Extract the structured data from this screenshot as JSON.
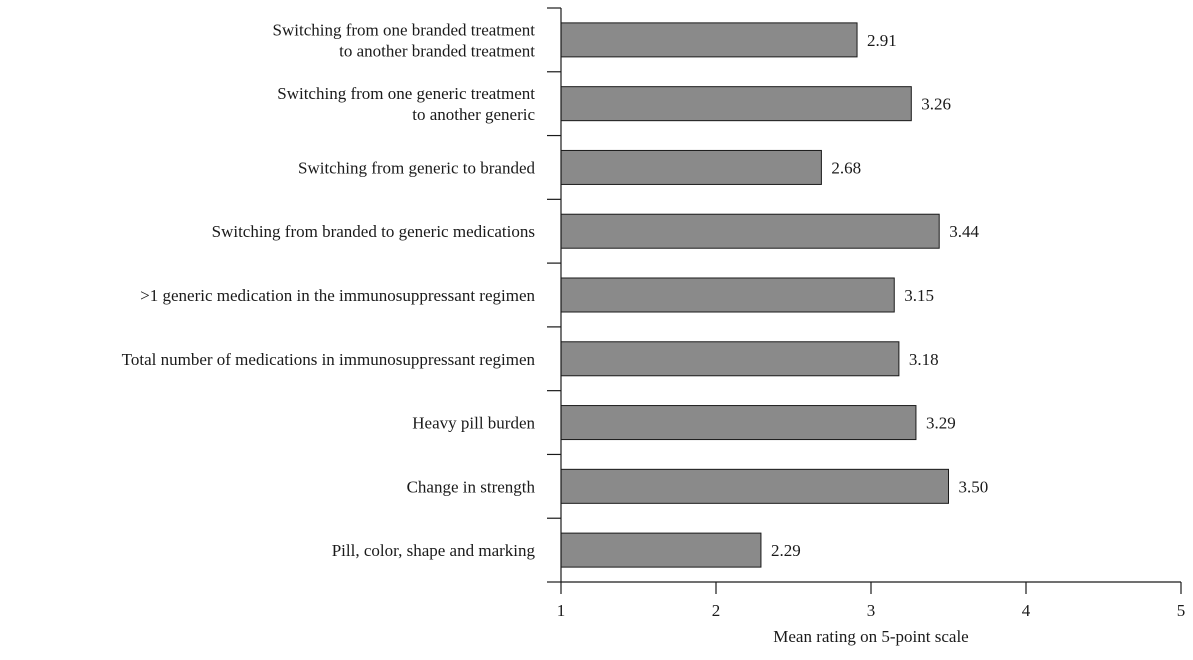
{
  "chart_data": {
    "type": "bar",
    "orientation": "horizontal",
    "categories": [
      [
        "Switching from one branded treatment",
        "to another branded treatment"
      ],
      [
        "Switching from one generic treatment",
        "to another generic"
      ],
      [
        "Switching from generic to branded"
      ],
      [
        "Switching from branded to generic medications"
      ],
      [
        ">1 generic medication in the immunosuppressant regimen"
      ],
      [
        "Total number of medications in immunosuppressant regimen"
      ],
      [
        "Heavy pill burden"
      ],
      [
        "Change in strength"
      ],
      [
        "Pill, color, shape and marking"
      ]
    ],
    "values": [
      2.91,
      3.26,
      2.68,
      3.44,
      3.15,
      3.18,
      3.29,
      3.5,
      2.29
    ],
    "value_labels": [
      "2.91",
      "3.26",
      "2.68",
      "3.44",
      "3.15",
      "3.18",
      "3.29",
      "3.50",
      "2.29"
    ],
    "xlim": [
      1,
      5
    ],
    "xticks": [
      1,
      2,
      3,
      4,
      5
    ],
    "xlabel": "Mean rating on 5-point scale",
    "grid": false,
    "colors": {
      "bar": "#8a8a8a",
      "outline": "#1a1a1a"
    }
  }
}
